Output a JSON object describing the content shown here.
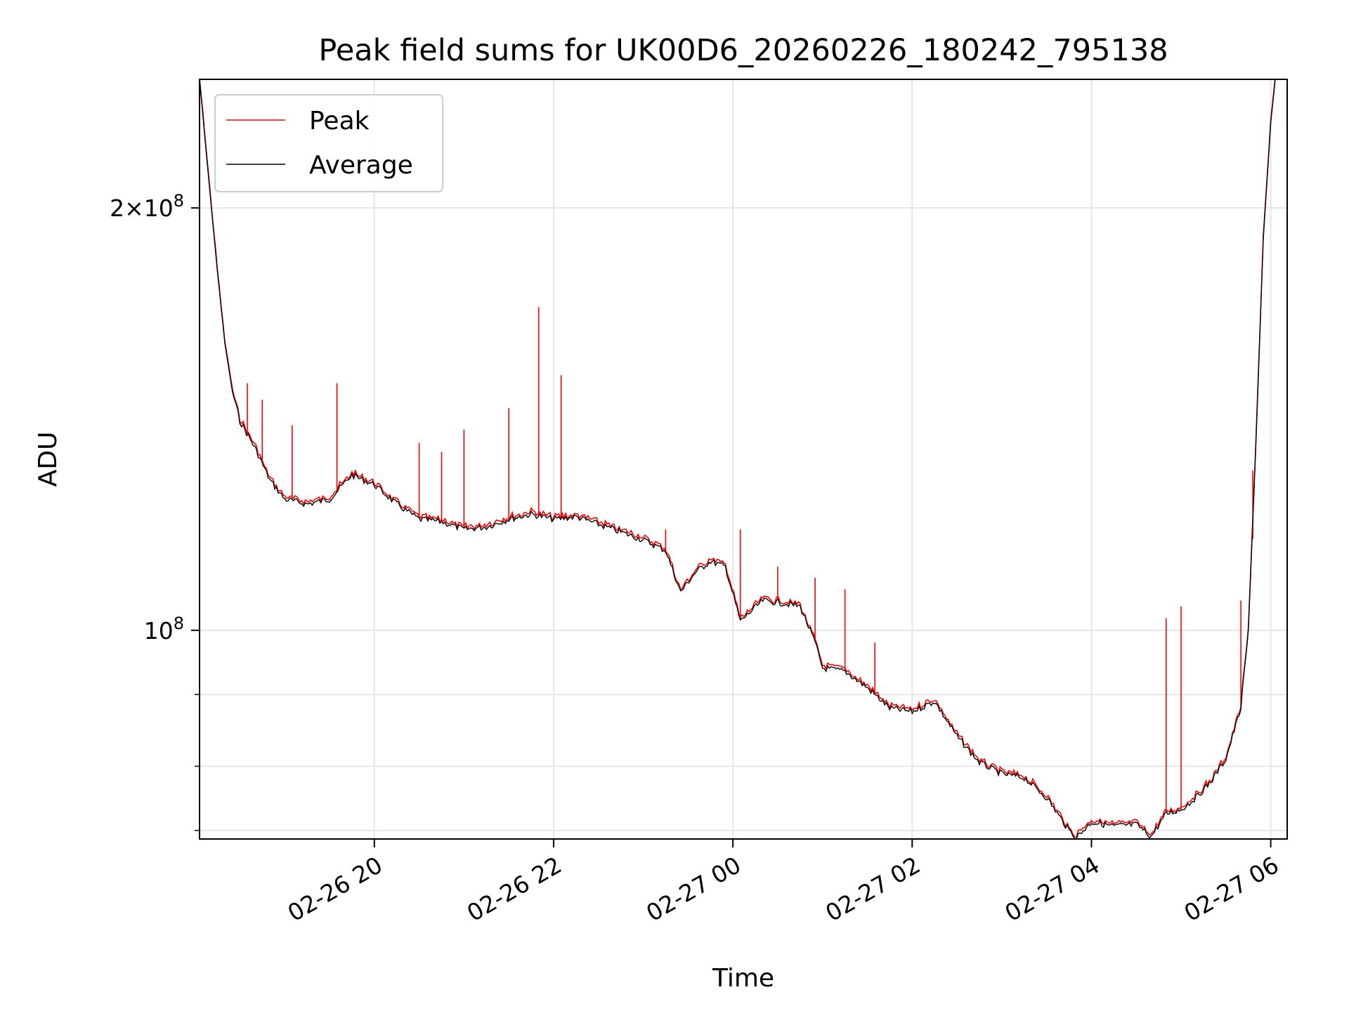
{
  "chart_data": {
    "type": "line",
    "title": "Peak field sums for UK00D6_20260226_180242_795138",
    "xlabel": "Time",
    "ylabel": "ADU",
    "y_scale": "log",
    "xlim": [
      "2026-02-26 18:03",
      "2026-02-27 06:11"
    ],
    "ylim": [
      71000000,
      247000000
    ],
    "grid": true,
    "legend_position": "top-left",
    "x_ticks": [
      {
        "value": "2026-02-26 20:00",
        "label": "02-26 20"
      },
      {
        "value": "2026-02-26 22:00",
        "label": "02-26 22"
      },
      {
        "value": "2026-02-27 00:00",
        "label": "02-27 00"
      },
      {
        "value": "2026-02-27 02:00",
        "label": "02-27 02"
      },
      {
        "value": "2026-02-27 04:00",
        "label": "02-27 04"
      },
      {
        "value": "2026-02-27 06:00",
        "label": "02-27 06"
      }
    ],
    "y_major_ticks": [
      {
        "value": 100000000,
        "label": "10^8"
      },
      {
        "value": 200000000,
        "label": "2×10^8"
      }
    ],
    "y_minor_ticks": [
      72000000,
      80000000,
      90000000
    ],
    "series": [
      {
        "name": "Average",
        "color": "#000000",
        "points": [
          [
            "2026-02-26 18:03",
            247000000
          ],
          [
            "2026-02-26 18:10",
            205000000
          ],
          [
            "2026-02-26 18:15",
            180000000
          ],
          [
            "2026-02-26 18:20",
            160000000
          ],
          [
            "2026-02-26 18:25",
            148000000
          ],
          [
            "2026-02-26 18:30",
            141000000
          ],
          [
            "2026-02-26 18:40",
            135000000
          ],
          [
            "2026-02-26 18:50",
            128000000
          ],
          [
            "2026-02-26 19:00",
            124000000
          ],
          [
            "2026-02-26 19:15",
            123000000
          ],
          [
            "2026-02-26 19:30",
            124000000
          ],
          [
            "2026-02-26 19:45",
            129000000
          ],
          [
            "2026-02-26 20:00",
            127000000
          ],
          [
            "2026-02-26 20:15",
            123000000
          ],
          [
            "2026-02-26 20:30",
            120000000
          ],
          [
            "2026-02-26 20:45",
            119500000
          ],
          [
            "2026-02-26 21:00",
            118000000
          ],
          [
            "2026-02-26 21:15",
            118500000
          ],
          [
            "2026-02-26 21:30",
            120000000
          ],
          [
            "2026-02-26 21:45",
            121000000
          ],
          [
            "2026-02-26 22:00",
            120000000
          ],
          [
            "2026-02-26 22:15",
            120500000
          ],
          [
            "2026-02-26 22:30",
            119000000
          ],
          [
            "2026-02-26 22:45",
            117500000
          ],
          [
            "2026-02-26 23:00",
            116000000
          ],
          [
            "2026-02-26 23:15",
            114000000
          ],
          [
            "2026-02-26 23:25",
            106500000
          ],
          [
            "2026-02-26 23:35",
            110000000
          ],
          [
            "2026-02-26 23:45",
            112000000
          ],
          [
            "2026-02-26 23:55",
            111000000
          ],
          [
            "2026-02-27 00:05",
            101500000
          ],
          [
            "2026-02-27 00:20",
            105000000
          ],
          [
            "2026-02-27 00:35",
            104500000
          ],
          [
            "2026-02-27 00:45",
            104000000
          ],
          [
            "2026-02-27 00:55",
            98000000
          ],
          [
            "2026-02-27 01:00",
            94000000
          ],
          [
            "2026-02-27 01:15",
            93500000
          ],
          [
            "2026-02-27 01:30",
            91000000
          ],
          [
            "2026-02-27 01:45",
            88000000
          ],
          [
            "2026-02-27 02:00",
            87500000
          ],
          [
            "2026-02-27 02:15",
            89000000
          ],
          [
            "2026-02-27 02:30",
            84000000
          ],
          [
            "2026-02-27 02:45",
            80500000
          ],
          [
            "2026-02-27 03:00",
            79000000
          ],
          [
            "2026-02-27 03:15",
            78500000
          ],
          [
            "2026-02-27 03:30",
            76000000
          ],
          [
            "2026-02-27 03:45",
            72000000
          ],
          [
            "2026-02-27 03:50",
            71200000
          ],
          [
            "2026-02-27 04:00",
            73000000
          ],
          [
            "2026-02-27 04:15",
            72500000
          ],
          [
            "2026-02-27 04:30",
            72700000
          ],
          [
            "2026-02-27 04:40",
            71300000
          ],
          [
            "2026-02-27 04:50",
            74000000
          ],
          [
            "2026-02-27 05:00",
            74500000
          ],
          [
            "2026-02-27 05:10",
            76000000
          ],
          [
            "2026-02-27 05:20",
            78000000
          ],
          [
            "2026-02-27 05:30",
            81000000
          ],
          [
            "2026-02-27 05:40",
            88000000
          ],
          [
            "2026-02-27 05:45",
            100000000
          ],
          [
            "2026-02-27 05:50",
            135000000
          ],
          [
            "2026-02-27 05:55",
            190000000
          ],
          [
            "2026-02-27 06:00",
            230000000
          ],
          [
            "2026-02-27 06:03",
            247000000
          ]
        ]
      },
      {
        "name": "Peak",
        "color": "#ff0000",
        "spikes": [
          [
            "2026-02-26 18:35",
            150000000
          ],
          [
            "2026-02-26 18:45",
            146000000
          ],
          [
            "2026-02-26 19:05",
            140000000
          ],
          [
            "2026-02-26 19:35",
            150000000
          ],
          [
            "2026-02-26 20:30",
            136000000
          ],
          [
            "2026-02-26 20:45",
            134000000
          ],
          [
            "2026-02-26 21:00",
            139000000
          ],
          [
            "2026-02-26 21:30",
            144000000
          ],
          [
            "2026-02-26 21:50",
            170000000
          ],
          [
            "2026-02-26 22:05",
            152000000
          ],
          [
            "2026-02-26 23:15",
            118000000
          ],
          [
            "2026-02-27 00:05",
            118000000
          ],
          [
            "2026-02-27 00:30",
            111000000
          ],
          [
            "2026-02-27 00:55",
            109000000
          ],
          [
            "2026-02-27 01:15",
            107000000
          ],
          [
            "2026-02-27 01:35",
            98000000
          ],
          [
            "2026-02-27 04:50",
            102000000
          ],
          [
            "2026-02-27 05:00",
            104000000
          ],
          [
            "2026-02-27 05:40",
            105000000
          ],
          [
            "2026-02-27 05:48",
            130000000
          ]
        ]
      }
    ]
  }
}
